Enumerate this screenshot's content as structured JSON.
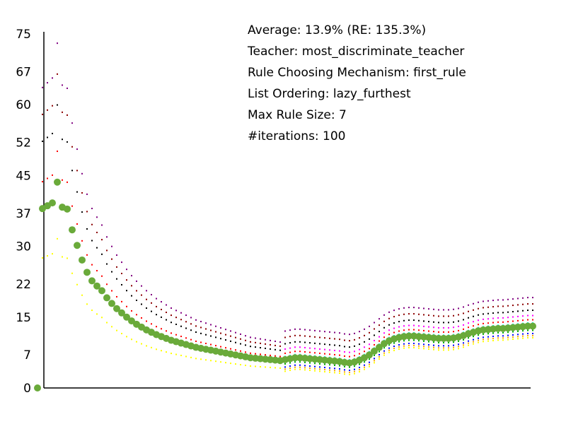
{
  "info": {
    "average": "Average: 13.9% (RE: 135.3%)",
    "teacher": "Teacher: most_discriminate_teacher",
    "rule": "Rule Choosing Mechanism: first_rule",
    "ordering": "List Ordering: lazy_furthest",
    "max_rule": "Max Rule Size: 7",
    "iterations": "#iterations: 100"
  },
  "chart_data": {
    "type": "scatter",
    "title": "",
    "xlabel": "",
    "ylabel": "",
    "x_range": [
      0,
      100
    ],
    "ylim": [
      0,
      75
    ],
    "y_ticks": [
      "0",
      "7",
      "15",
      "22",
      "30",
      "37",
      "45",
      "52",
      "60",
      "67",
      "75"
    ],
    "grid": false,
    "legend": "none",
    "colors": {
      "average": "#6aaa3a",
      "axis": "#000000",
      "bands": [
        "#ffff00",
        "#ff0000",
        "#000000",
        "#8b0000",
        "#800080",
        "#0000ff",
        "#00aa00",
        "#00ffff",
        "#ff00ff",
        "#ffa500"
      ]
    },
    "series": [
      {
        "role": "average",
        "points": [
          [
            0,
            0
          ],
          [
            1,
            38
          ],
          [
            2,
            38.6
          ],
          [
            3,
            39.2
          ],
          [
            4,
            43.6
          ],
          [
            5,
            38.3
          ],
          [
            6,
            37.9
          ],
          [
            7,
            33.5
          ],
          [
            8,
            30.2
          ],
          [
            9,
            27.1
          ],
          [
            10,
            24.5
          ],
          [
            11,
            22.7
          ],
          [
            12,
            21.6
          ],
          [
            13,
            20.6
          ],
          [
            14,
            19.1
          ],
          [
            15,
            17.9
          ],
          [
            16,
            16.8
          ],
          [
            17,
            15.9
          ],
          [
            18,
            15.0
          ],
          [
            19,
            14.2
          ],
          [
            20,
            13.5
          ],
          [
            21,
            12.9
          ],
          [
            22,
            12.3
          ],
          [
            23,
            11.8
          ],
          [
            24,
            11.3
          ],
          [
            25,
            10.9
          ],
          [
            26,
            10.5
          ],
          [
            27,
            10.1
          ],
          [
            28,
            9.8
          ],
          [
            29,
            9.5
          ],
          [
            30,
            9.2
          ],
          [
            31,
            8.9
          ],
          [
            32,
            8.6
          ],
          [
            33,
            8.4
          ],
          [
            34,
            8.2
          ],
          [
            35,
            8.0
          ],
          [
            36,
            7.8
          ],
          [
            37,
            7.6
          ],
          [
            38,
            7.4
          ],
          [
            39,
            7.2
          ],
          [
            40,
            7.0
          ],
          [
            41,
            6.8
          ],
          [
            42,
            6.6
          ],
          [
            43,
            6.4
          ],
          [
            44,
            6.3
          ],
          [
            45,
            6.2
          ],
          [
            46,
            6.1
          ],
          [
            47,
            6.0
          ],
          [
            48,
            5.9
          ],
          [
            49,
            5.8
          ],
          [
            50,
            6.0
          ],
          [
            51,
            6.2
          ],
          [
            52,
            6.4
          ],
          [
            53,
            6.4
          ],
          [
            54,
            6.3
          ],
          [
            55,
            6.2
          ],
          [
            56,
            6.1
          ],
          [
            57,
            6.0
          ],
          [
            58,
            5.9
          ],
          [
            59,
            5.8
          ],
          [
            60,
            5.7
          ],
          [
            61,
            5.6
          ],
          [
            62,
            5.4
          ],
          [
            63,
            5.3
          ],
          [
            64,
            5.5
          ],
          [
            65,
            5.9
          ],
          [
            66,
            6.4
          ],
          [
            67,
            7.0
          ],
          [
            68,
            7.8
          ],
          [
            69,
            8.6
          ],
          [
            70,
            9.4
          ],
          [
            71,
            10.0
          ],
          [
            72,
            10.4
          ],
          [
            73,
            10.7
          ],
          [
            74,
            10.9
          ],
          [
            75,
            11.0
          ],
          [
            76,
            11.0
          ],
          [
            77,
            10.9
          ],
          [
            78,
            10.8
          ],
          [
            79,
            10.7
          ],
          [
            80,
            10.6
          ],
          [
            81,
            10.5
          ],
          [
            82,
            10.5
          ],
          [
            83,
            10.5
          ],
          [
            84,
            10.6
          ],
          [
            85,
            10.8
          ],
          [
            86,
            11.1
          ],
          [
            87,
            11.5
          ],
          [
            88,
            11.8
          ],
          [
            89,
            12.1
          ],
          [
            90,
            12.3
          ],
          [
            91,
            12.4
          ],
          [
            92,
            12.5
          ],
          [
            93,
            12.6
          ],
          [
            94,
            12.6
          ],
          [
            95,
            12.7
          ],
          [
            96,
            12.8
          ],
          [
            97,
            12.9
          ],
          [
            98,
            13.0
          ],
          [
            99,
            13.1
          ],
          [
            100,
            13.1
          ]
        ]
      }
    ]
  }
}
